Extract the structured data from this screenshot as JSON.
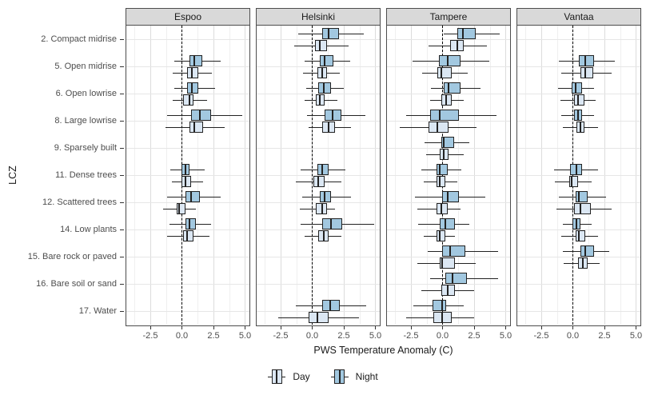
{
  "chart_data": {
    "type": "boxplot",
    "xlabel": "PWS Temperature Anomaly (C)",
    "ylabel": "LCZ",
    "facets": [
      "Espoo",
      "Helsinki",
      "Tampere",
      "Vantaa"
    ],
    "categories": [
      "2. Compact midrise",
      "5. Open midrise",
      "6. Open lowrise",
      "8. Large lowrise",
      "9. Sparsely built",
      "11. Dense trees",
      "12. Scattered trees",
      "14. Low plants",
      "15. Bare rock or paved",
      "16. Bare soil or sand",
      "17. Water"
    ],
    "x_ticks": [
      -2.5,
      0.0,
      2.5,
      5.0
    ],
    "x_tick_labels": [
      "-2.5",
      "0.0",
      "2.5",
      "5.0"
    ],
    "x_minor_ticks": [
      -3.75,
      -1.25,
      1.25,
      3.75
    ],
    "xlim": [
      -4.4,
      5.35
    ],
    "reference_line_x": 0,
    "legend": [
      {
        "label": "Day",
        "fill": "#dbe7f3"
      },
      {
        "label": "Night",
        "fill": "#a2c8e0"
      }
    ],
    "layout": {
      "grid": true,
      "legend_position": "bottom",
      "night_above_day": true
    },
    "colors": {
      "day_fill": "#dbe7f3",
      "night_fill": "#a2c8e0",
      "box_border": "#222222",
      "strip_bg": "#d9d9d9",
      "grid_major": "#dcdcdc",
      "grid_minor": "#efefef",
      "reference_line": "#000000"
    },
    "box_format": [
      "whisker_low",
      "q1",
      "median",
      "q3",
      "whisker_high"
    ],
    "boxes": {
      "Espoo": [
        null,
        {
          "night": [
            -0.6,
            0.6,
            1.0,
            1.6,
            3.1
          ],
          "day": [
            -0.7,
            0.4,
            0.8,
            1.3,
            2.4
          ]
        },
        {
          "night": [
            -0.6,
            0.4,
            0.8,
            1.3,
            2.6
          ],
          "day": [
            -0.7,
            0.1,
            0.6,
            0.9,
            2.0
          ]
        },
        {
          "night": [
            -1.2,
            0.7,
            1.4,
            2.3,
            4.8
          ],
          "day": [
            -1.3,
            0.6,
            1.0,
            1.7,
            3.4
          ]
        },
        null,
        {
          "night": [
            -0.9,
            0.0,
            0.3,
            0.6,
            1.8
          ],
          "day": [
            -0.8,
            0.0,
            0.3,
            0.7,
            1.7
          ]
        },
        {
          "night": [
            -1.2,
            0.3,
            0.7,
            1.4,
            3.1
          ],
          "day": [
            -1.5,
            -0.4,
            -0.2,
            0.3,
            1.1
          ]
        },
        {
          "night": [
            -1.0,
            0.3,
            0.6,
            1.1,
            2.3
          ],
          "day": [
            -1.2,
            0.1,
            0.4,
            0.9,
            2.2
          ]
        },
        null,
        null,
        null
      ],
      "Helsinki": [
        {
          "night": [
            -1.1,
            0.8,
            1.3,
            2.1,
            4.1
          ],
          "day": [
            -1.4,
            0.2,
            0.6,
            1.2,
            2.9
          ]
        },
        {
          "night": [
            -0.6,
            0.6,
            1.0,
            1.7,
            3.0
          ],
          "day": [
            -0.7,
            0.4,
            0.8,
            1.2,
            2.2
          ]
        },
        {
          "night": [
            -0.5,
            0.5,
            0.9,
            1.5,
            2.5
          ],
          "day": [
            -0.6,
            0.3,
            0.6,
            1.0,
            2.0
          ]
        },
        {
          "night": [
            -0.4,
            1.0,
            1.6,
            2.3,
            4.2
          ],
          "day": [
            -0.3,
            0.8,
            1.3,
            1.8,
            3.1
          ]
        },
        null,
        {
          "night": [
            -0.9,
            0.4,
            0.8,
            1.3,
            2.6
          ],
          "day": [
            -1.3,
            0.1,
            0.5,
            1.0,
            2.3
          ]
        },
        {
          "night": [
            -0.8,
            0.6,
            1.0,
            1.5,
            3.1
          ],
          "day": [
            -1.0,
            0.3,
            0.8,
            1.2,
            1.8
          ]
        },
        {
          "night": [
            -0.9,
            0.8,
            1.5,
            2.4,
            4.9
          ],
          "day": [
            -0.6,
            0.5,
            0.9,
            1.3,
            2.3
          ]
        },
        null,
        null,
        {
          "night": [
            -1.3,
            0.8,
            1.4,
            2.2,
            4.3
          ],
          "day": [
            -2.7,
            -0.3,
            0.4,
            1.3,
            3.7
          ]
        }
      ],
      "Tampere": [
        {
          "night": [
            0.1,
            1.2,
            1.6,
            2.6,
            4.5
          ],
          "day": [
            -1.1,
            0.6,
            1.2,
            1.7,
            3.5
          ]
        },
        {
          "night": [
            -2.4,
            -0.3,
            0.4,
            1.4,
            3.7
          ],
          "day": [
            -1.6,
            -0.4,
            -0.1,
            0.7,
            2.0
          ]
        },
        {
          "night": [
            -0.9,
            0.1,
            0.5,
            1.4,
            3.0
          ],
          "day": [
            -1.0,
            -0.1,
            0.3,
            0.7,
            1.7
          ]
        },
        {
          "night": [
            -2.9,
            -1.0,
            -0.2,
            1.3,
            4.3
          ],
          "day": [
            -3.4,
            -1.1,
            -0.4,
            0.5,
            2.7
          ]
        },
        {
          "night": [
            -1.4,
            -0.1,
            0.1,
            0.9,
            2.1
          ],
          "day": [
            -1.3,
            -0.2,
            0.1,
            0.5,
            1.7
          ]
        },
        {
          "night": [
            -1.7,
            -0.5,
            -0.2,
            0.4,
            1.5
          ],
          "day": [
            -1.5,
            -0.5,
            -0.2,
            0.2,
            1.2
          ]
        },
        {
          "night": [
            -2.2,
            0.0,
            0.4,
            1.3,
            3.4
          ],
          "day": [
            -2.0,
            -0.5,
            -0.1,
            0.4,
            1.4
          ]
        },
        {
          "night": [
            -1.9,
            -0.2,
            0.2,
            1.0,
            2.1
          ],
          "day": [
            -1.5,
            -0.5,
            -0.2,
            0.2,
            1.0
          ]
        },
        {
          "night": [
            -1.2,
            0.0,
            0.6,
            1.8,
            4.4
          ],
          "day": [
            -2.0,
            -0.2,
            0.0,
            1.0,
            2.6
          ]
        },
        {
          "night": [
            -1.0,
            0.2,
            0.8,
            1.9,
            4.4
          ],
          "day": [
            -1.7,
            -0.1,
            0.4,
            1.0,
            2.5
          ]
        },
        {
          "night": [
            -2.3,
            -0.8,
            0.0,
            0.3,
            1.7
          ],
          "day": [
            -2.9,
            -0.7,
            0.0,
            0.7,
            2.5
          ]
        }
      ],
      "Vantaa": [
        null,
        {
          "night": [
            -1.1,
            0.5,
            1.0,
            1.7,
            3.3
          ],
          "day": [
            -0.9,
            0.6,
            1.0,
            1.6,
            3.1
          ]
        },
        {
          "night": [
            -1.2,
            -0.1,
            0.2,
            0.7,
            1.7
          ],
          "day": [
            -1.0,
            0.1,
            0.4,
            0.9,
            1.8
          ]
        },
        {
          "night": [
            -0.9,
            0.1,
            0.4,
            0.7,
            1.7
          ],
          "day": [
            -0.8,
            0.3,
            0.6,
            0.9,
            2.0
          ]
        },
        null,
        {
          "night": [
            -1.5,
            -0.2,
            0.3,
            0.7,
            2.0
          ],
          "day": [
            -1.4,
            -0.3,
            -0.1,
            0.4,
            1.5
          ]
        },
        {
          "night": [
            -1.1,
            0.2,
            0.5,
            1.2,
            2.6
          ],
          "day": [
            -1.3,
            0.1,
            0.6,
            1.4,
            3.1
          ]
        },
        {
          "night": [
            -0.8,
            0.0,
            0.3,
            0.6,
            1.5
          ],
          "day": [
            -0.9,
            0.2,
            0.5,
            1.0,
            2.0
          ]
        },
        {
          "night": [
            -0.8,
            0.6,
            1.0,
            1.7,
            2.9
          ],
          "day": [
            -0.7,
            0.4,
            0.8,
            1.2,
            2.1
          ]
        },
        null,
        null
      ]
    }
  }
}
